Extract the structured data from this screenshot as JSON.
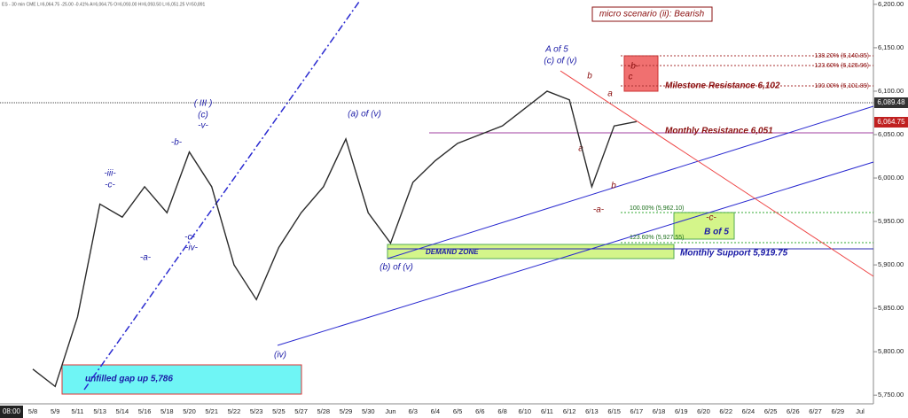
{
  "chart_data": {
    "type": "line",
    "header": "ES - 30 min  CME  L=6,064.75  -25.00  -0.41%  A=6,064.75  O=6,093.00  H=6,093.50  L=6,051.25  V=50,891",
    "time_label": "08:00",
    "categories": [
      "5/8",
      "5/9",
      "5/11",
      "5/13",
      "5/14",
      "5/16",
      "5/18",
      "5/20",
      "5/21",
      "5/22",
      "5/23",
      "5/25",
      "5/27",
      "5/28",
      "5/29",
      "5/30",
      "Jun",
      "6/3",
      "6/4",
      "6/5",
      "6/6",
      "6/8",
      "6/10",
      "6/11",
      "6/12",
      "6/13",
      "6/15",
      "6/17",
      "6/18",
      "6/19",
      "6/20",
      "6/22",
      "6/24",
      "6/25",
      "6/26",
      "6/27",
      "6/29",
      "Jul"
    ],
    "series": [
      {
        "name": "ES",
        "color": "#2b2b2b",
        "values": [
          5780,
          5760,
          5840,
          5970,
          5955,
          5990,
          5960,
          6030,
          5990,
          5900,
          5860,
          5920,
          5960,
          5990,
          6045,
          5960,
          5925,
          5995,
          6020,
          6040,
          6050,
          6060,
          6080,
          6100,
          6090,
          5990,
          6060,
          6065,
          null,
          null,
          null,
          null,
          null,
          null,
          null,
          null,
          null,
          null
        ]
      }
    ],
    "ylim": [
      5740,
      6205
    ],
    "yticks": [
      {
        "value": 5750,
        "label": "5,750.00"
      },
      {
        "value": 5800,
        "label": "5,800.00"
      },
      {
        "value": 5850,
        "label": "5,850.00"
      },
      {
        "value": 5900,
        "label": "5,900.00"
      },
      {
        "value": 5950,
        "label": "5,950.00"
      },
      {
        "value": 6000,
        "label": "6,000.00"
      },
      {
        "value": 6050,
        "label": "6,050.00"
      },
      {
        "value": 6100,
        "label": "6,100.00"
      },
      {
        "value": 6150,
        "label": "6,150.00"
      },
      {
        "value": 6200,
        "label": "6,200.00"
      }
    ],
    "price_tags": [
      "6,089.48",
      "6,064.75"
    ],
    "scenario": "micro scenario (ii): Bearish",
    "levels": [
      "Milestone Resistance 6,102",
      "Monthly Resistance 6,051",
      "Monthly Support 5,919.75"
    ],
    "fibs": [
      "138.20% (6,140.85)",
      "123.60% (6,125.96)",
      "100.00% (6,101.89)",
      "100.00% (5,962.10)",
      "123.60% (5,927.55)"
    ],
    "zones": [
      "DEMAND ZONE",
      "unfilled gap up 5,786"
    ],
    "blue_labels": [
      "-iii-",
      "-c-",
      "-a-",
      "-b-",
      "( III )",
      "(c)",
      "-v-",
      "-c-",
      "-iv-",
      "(a) of (v)",
      "(b) of (v)",
      "(iv)",
      "A of 5",
      "(c) of (v)",
      "B of 5"
    ],
    "red_labels": [
      "b",
      "a",
      "a",
      "-a-",
      "b",
      "c",
      "-b-",
      "-c-"
    ]
  }
}
